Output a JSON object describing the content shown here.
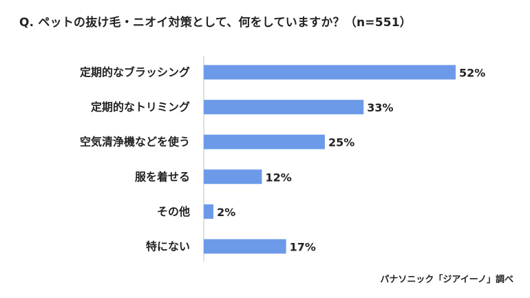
{
  "title": "Q. ペットの抜け毛・ニオイ対策として、何をしていますか？（n=551）",
  "source": "パナソニック「ジアイーノ」調べ",
  "chart_data": {
    "type": "bar",
    "orientation": "horizontal",
    "title": "Q. ペットの抜け毛・ニオイ対策として、何をしていますか？（n=551）",
    "xlabel": "",
    "ylabel": "",
    "categories": [
      "定期的なブラッシング",
      "定期的なトリミング",
      "空気清浄機などを使う",
      "服を着せる",
      "その他",
      "特にない"
    ],
    "values": [
      52,
      33,
      25,
      12,
      2,
      17
    ],
    "value_labels": [
      "52%",
      "33%",
      "25%",
      "12%",
      "2%",
      "17%"
    ],
    "unit": "%",
    "xlim": [
      0,
      52
    ],
    "grid": false,
    "legend": "none",
    "bar_color": "#6C9AE8",
    "axis_color": "#BFBFBF"
  }
}
